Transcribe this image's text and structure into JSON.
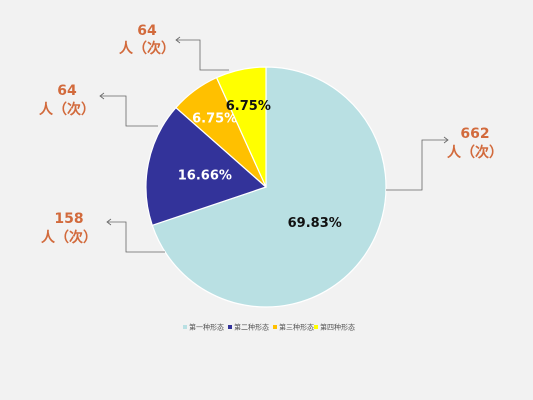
{
  "chart_data": {
    "type": "pie",
    "legend_position": "bottom",
    "slices": [
      {
        "name": "第一种形态",
        "value": 662,
        "percent_label": "69.83%",
        "count_label": "662",
        "unit_label": "人（次）",
        "color": "#b9e0e3",
        "label_color": "#111111"
      },
      {
        "name": "第二种形态",
        "value": 158,
        "percent_label": "16.66%",
        "count_label": "158",
        "unit_label": "人（次）",
        "color": "#33339a",
        "label_color": "#ffffff"
      },
      {
        "name": "第三种形态",
        "value": 64,
        "percent_label": "6.75%",
        "count_label": "64",
        "unit_label": "人（次）",
        "color": "#ffc000",
        "label_color": "#ffffff"
      },
      {
        "name": "第四种形态",
        "value": 64,
        "percent_label": "6.75%",
        "count_label": "64",
        "unit_label": "人（次）",
        "color": "#ffff00",
        "label_color": "#111111"
      }
    ]
  }
}
